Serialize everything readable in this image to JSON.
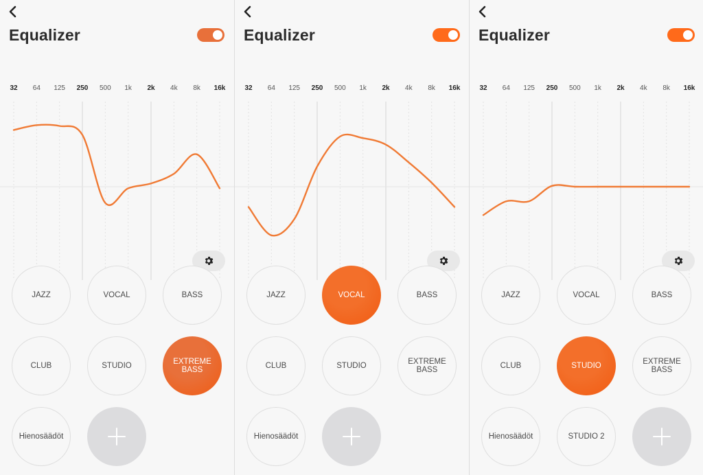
{
  "frequencies": [
    "32",
    "64",
    "125",
    "250",
    "500",
    "1k",
    "2k",
    "4k",
    "8k",
    "16k"
  ],
  "panels": [
    {
      "title": "Equalizer",
      "toggle_on": true,
      "toggle_color": "#e8703a",
      "accent": "#e8703a",
      "curve": [
        0.7,
        0.76,
        0.75,
        0.64,
        -0.2,
        -0.02,
        0.04,
        0.16,
        0.4,
        -0.02
      ],
      "presets": [
        {
          "label": "JAZZ"
        },
        {
          "label": "VOCAL"
        },
        {
          "label": "BASS"
        },
        {
          "label": "CLUB"
        },
        {
          "label": "STUDIO"
        },
        {
          "label": "EXTREME BASS",
          "active": true
        },
        {
          "label": "Hienosäädöt"
        },
        {
          "add": true
        }
      ]
    },
    {
      "title": "Equalizer",
      "toggle_on": true,
      "toggle_color": "#ff6a1a",
      "accent": "#f36f2a",
      "curve": [
        -0.25,
        -0.6,
        -0.4,
        0.25,
        0.62,
        0.6,
        0.52,
        0.3,
        0.05,
        -0.25
      ],
      "presets": [
        {
          "label": "JAZZ"
        },
        {
          "label": "VOCAL",
          "active": true
        },
        {
          "label": "BASS"
        },
        {
          "label": "CLUB"
        },
        {
          "label": "STUDIO"
        },
        {
          "label": "EXTREME BASS"
        },
        {
          "label": "Hienosäädöt"
        },
        {
          "add": true
        }
      ]
    },
    {
      "title": "Equalizer",
      "toggle_on": true,
      "toggle_color": "#ff6a1a",
      "accent": "#f36f2a",
      "curve": [
        -0.35,
        -0.18,
        -0.18,
        0.01,
        0.0,
        0.0,
        0.0,
        0.0,
        0.0,
        0.0
      ],
      "presets": [
        {
          "label": "JAZZ"
        },
        {
          "label": "VOCAL"
        },
        {
          "label": "BASS"
        },
        {
          "label": "CLUB"
        },
        {
          "label": "STUDIO",
          "active": true
        },
        {
          "label": "EXTREME BASS"
        },
        {
          "label": "Hienosäädöt"
        },
        {
          "label": "STUDIO 2"
        },
        {
          "add": true
        }
      ]
    }
  ]
}
